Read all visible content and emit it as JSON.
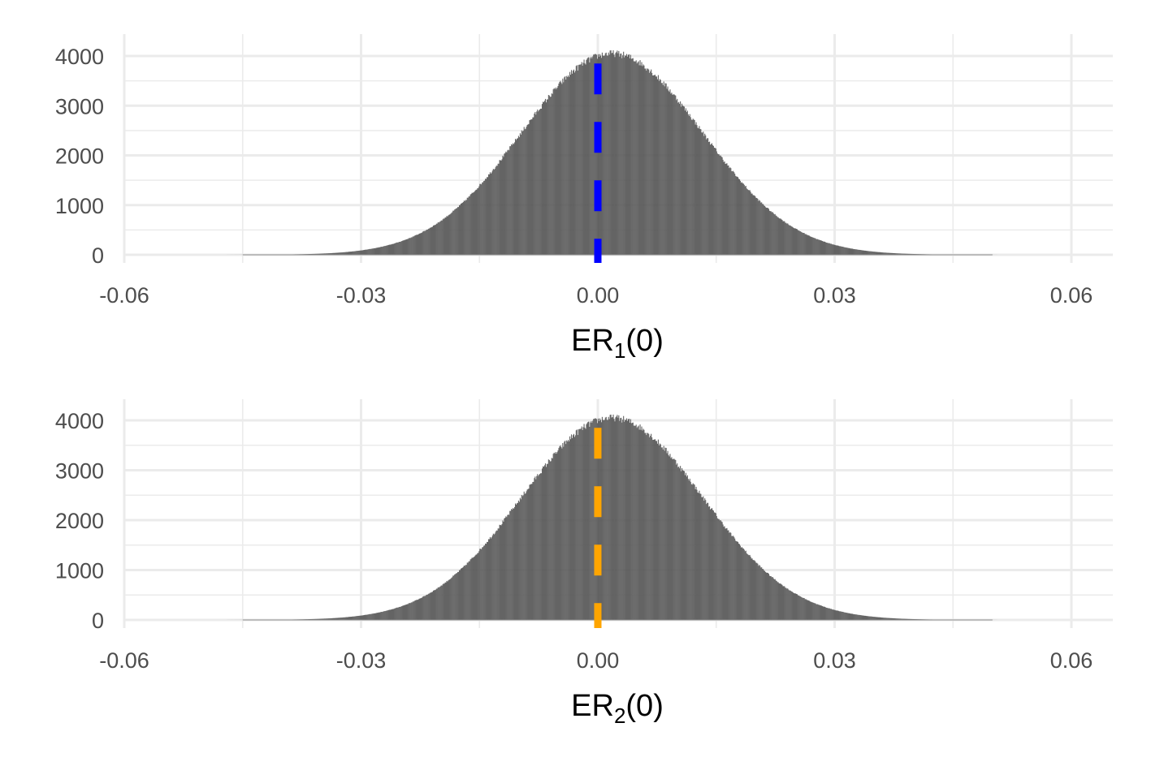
{
  "chart_data": [
    {
      "type": "bar",
      "subtype": "histogram",
      "xlabel": {
        "base": "ER",
        "subscript": "1",
        "suffix": "(0)"
      },
      "ylabel": "",
      "xlim": [
        -0.06,
        0.063
      ],
      "ylim": [
        0,
        4300
      ],
      "x_ticks": [
        -0.06,
        -0.03,
        0.0,
        0.03,
        0.06
      ],
      "x_tick_labels": [
        "-0.06",
        "-0.03",
        "0.00",
        "0.03",
        "0.06"
      ],
      "y_ticks": [
        0,
        1000,
        2000,
        3000,
        4000
      ],
      "y_tick_labels": [
        "0",
        "1000",
        "2000",
        "3000",
        "4000"
      ],
      "grid": true,
      "bin_width": 0.0001,
      "distribution": {
        "shape": "normal",
        "mean": 0.0018,
        "sd": 0.0115,
        "peak_count": 4050
      },
      "bar_color": "#595959",
      "reference_line": {
        "x": 0.0,
        "style": "dashed",
        "color": "#0000ff"
      }
    },
    {
      "type": "bar",
      "subtype": "histogram",
      "xlabel": {
        "base": "ER",
        "subscript": "2",
        "suffix": "(0)"
      },
      "ylabel": "",
      "xlim": [
        -0.06,
        0.063
      ],
      "ylim": [
        0,
        4300
      ],
      "x_ticks": [
        -0.06,
        -0.03,
        0.0,
        0.03,
        0.06
      ],
      "x_tick_labels": [
        "-0.06",
        "-0.03",
        "0.00",
        "0.03",
        "0.06"
      ],
      "y_ticks": [
        0,
        1000,
        2000,
        3000,
        4000
      ],
      "y_tick_labels": [
        "0",
        "1000",
        "2000",
        "3000",
        "4000"
      ],
      "grid": true,
      "bin_width": 0.0001,
      "distribution": {
        "shape": "normal",
        "mean": 0.0018,
        "sd": 0.0115,
        "peak_count": 4050
      },
      "bar_color": "#595959",
      "reference_line": {
        "x": 0.0,
        "style": "dashed",
        "color": "#ffa500"
      }
    }
  ]
}
